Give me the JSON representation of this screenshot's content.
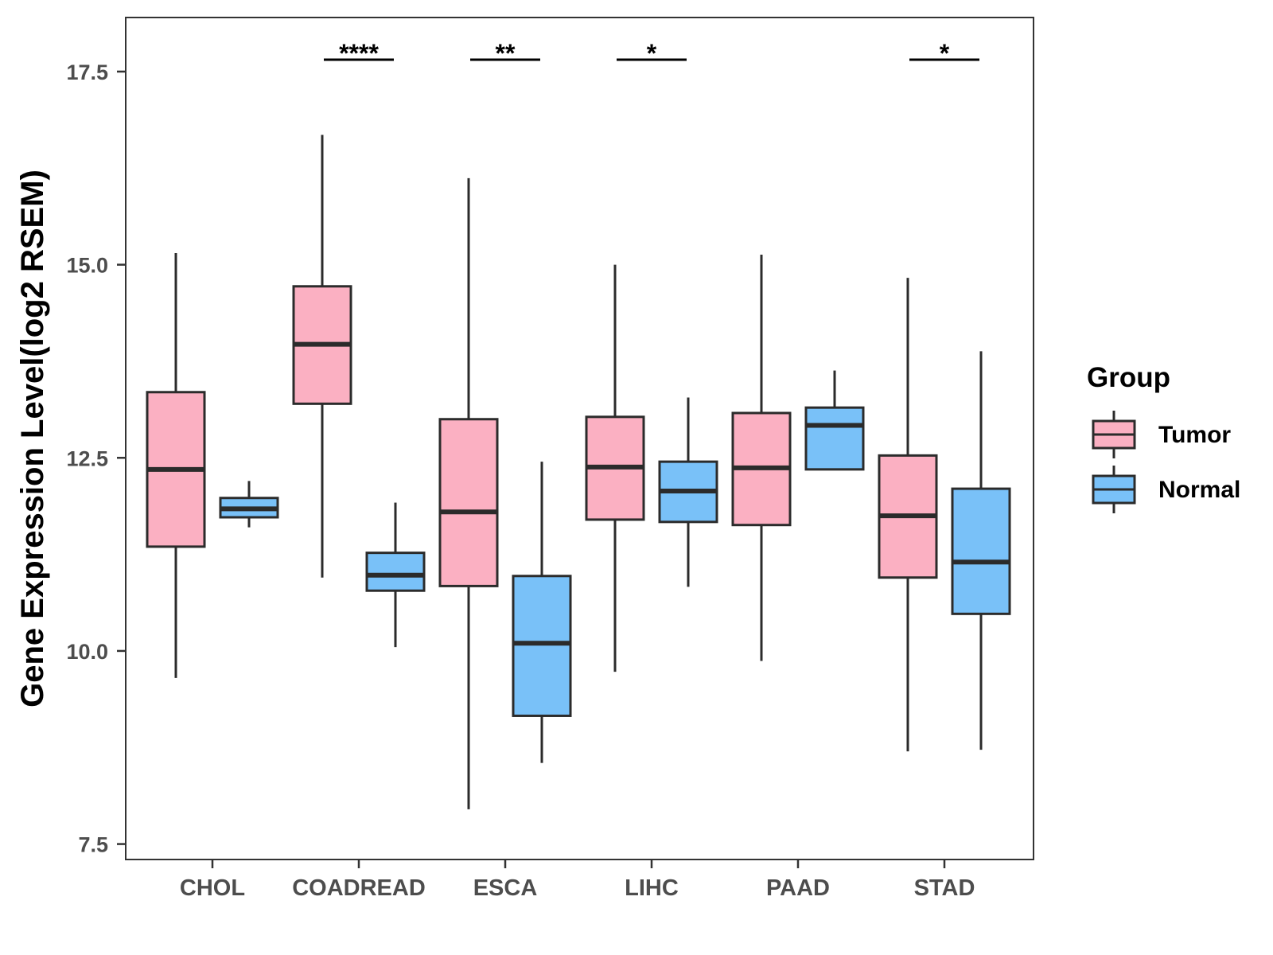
{
  "chart_data": {
    "type": "boxplot",
    "title": "",
    "xlabel": "",
    "ylabel": "Gene Expression Level(log2 RSEM)",
    "ylim": [
      7.3,
      18.2
    ],
    "yticks": [
      7.5,
      10.0,
      12.5,
      15.0,
      17.5
    ],
    "ytick_labels": [
      "7.5",
      "10.0",
      "12.5",
      "15.0",
      "17.5"
    ],
    "categories": [
      "CHOL",
      "COADREAD",
      "ESCA",
      "LIHC",
      "PAAD",
      "STAD"
    ],
    "legend": {
      "title": "Group",
      "position": "right",
      "items": [
        {
          "name": "Tumor",
          "color": "#fbb0c2"
        },
        {
          "name": "Normal",
          "color": "#79c1f8"
        }
      ]
    },
    "series": [
      {
        "name": "Tumor",
        "color": "#fbb0c2",
        "boxes": [
          {
            "min": 9.65,
            "q1": 11.35,
            "median": 12.35,
            "q3": 13.35,
            "max": 15.15
          },
          {
            "min": 10.95,
            "q1": 13.2,
            "median": 13.97,
            "q3": 14.72,
            "max": 16.68
          },
          {
            "min": 7.95,
            "q1": 10.84,
            "median": 11.8,
            "q3": 13.0,
            "max": 16.12
          },
          {
            "min": 9.73,
            "q1": 11.7,
            "median": 12.38,
            "q3": 13.03,
            "max": 15.0
          },
          {
            "min": 9.87,
            "q1": 11.63,
            "median": 12.37,
            "q3": 13.08,
            "max": 15.13
          },
          {
            "min": 8.7,
            "q1": 10.95,
            "median": 11.75,
            "q3": 12.53,
            "max": 14.83
          }
        ]
      },
      {
        "name": "Normal",
        "color": "#79c1f8",
        "boxes": [
          {
            "min": 11.6,
            "q1": 11.73,
            "median": 11.84,
            "q3": 11.98,
            "max": 12.2
          },
          {
            "min": 10.05,
            "q1": 10.78,
            "median": 10.98,
            "q3": 11.27,
            "max": 11.92
          },
          {
            "min": 8.55,
            "q1": 9.16,
            "median": 10.1,
            "q3": 10.97,
            "max": 12.45
          },
          {
            "min": 10.83,
            "q1": 11.67,
            "median": 12.07,
            "q3": 12.45,
            "max": 13.28
          },
          {
            "min": null,
            "q1": 12.35,
            "median": 12.92,
            "q3": 13.15,
            "max": 13.63
          },
          {
            "min": 8.72,
            "q1": 10.48,
            "median": 11.15,
            "q3": 12.1,
            "max": 13.88
          }
        ]
      }
    ],
    "significance": [
      {
        "category": "CHOL",
        "label": ""
      },
      {
        "category": "COADREAD",
        "label": "****"
      },
      {
        "category": "ESCA",
        "label": "**"
      },
      {
        "category": "LIHC",
        "label": "*"
      },
      {
        "category": "PAAD",
        "label": ""
      },
      {
        "category": "STAD",
        "label": "*"
      }
    ]
  }
}
